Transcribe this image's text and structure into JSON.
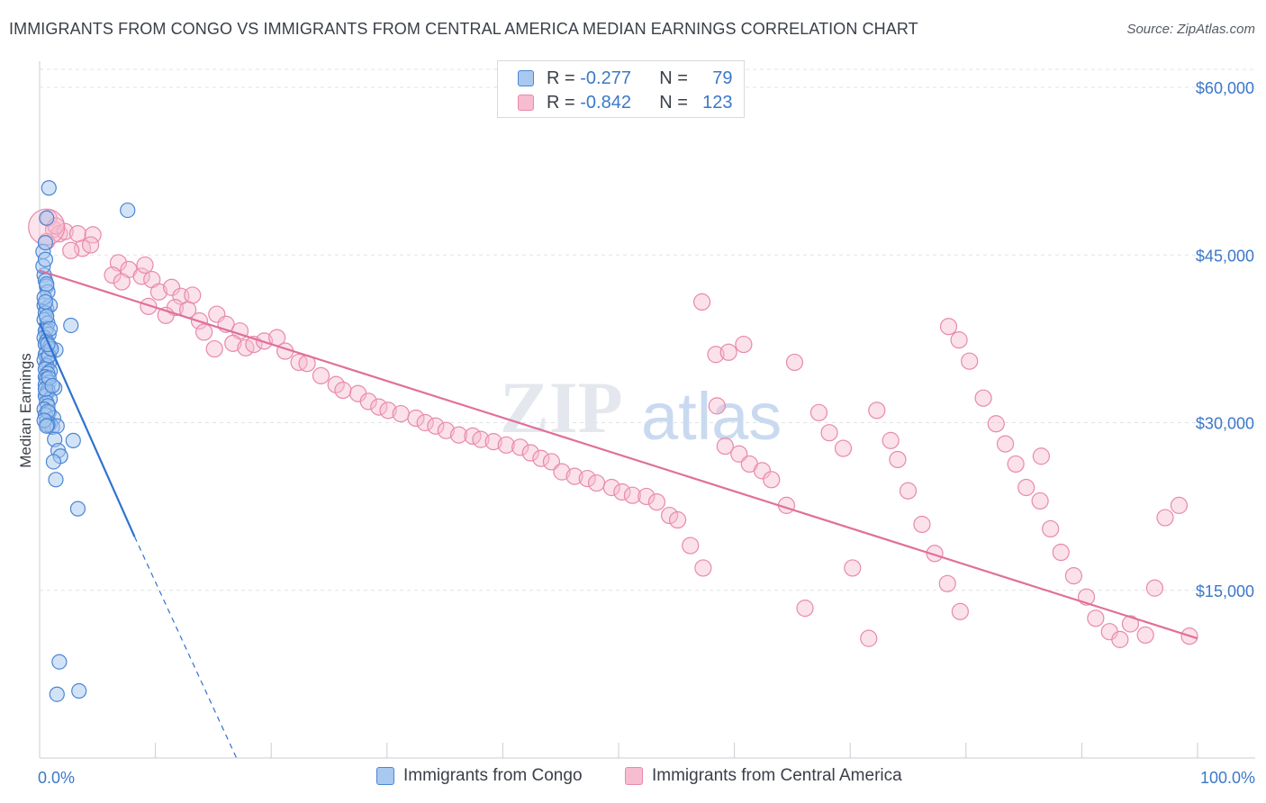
{
  "title": "IMMIGRANTS FROM CONGO VS IMMIGRANTS FROM CENTRAL AMERICA MEDIAN EARNINGS CORRELATION CHART",
  "source": "Source: ZipAtlas.com",
  "watermark": {
    "zip": "ZIP",
    "atlas": "atlas"
  },
  "legend": {
    "rows": [
      {
        "r_label": "R =",
        "r_value": "-0.277",
        "n_label": "N =",
        "n_value": "79"
      },
      {
        "r_label": "R =",
        "r_value": "-0.842",
        "n_label": "N =",
        "n_value": "123"
      }
    ]
  },
  "colors": {
    "congo_fill": "#a8c8f0",
    "congo_stroke": "#4a86d4",
    "congo_line": "#2f72d0",
    "ca_fill": "#f7bcd0",
    "ca_stroke": "#e889ab",
    "ca_line": "#e0709a",
    "tick_text": "#3b78c9",
    "grid": "#dfe3e8"
  },
  "chart_data": {
    "type": "scatter",
    "title": "IMMIGRANTS FROM CONGO VS IMMIGRANTS FROM CENTRAL AMERICA MEDIAN EARNINGS CORRELATION CHART",
    "xlabel": "",
    "ylabel": "Median Earnings",
    "xlim": [
      0,
      100
    ],
    "ylim": [
      0,
      60000
    ],
    "x_tick_labels": [
      "0.0%",
      "100.0%"
    ],
    "y_ticks": [
      15000,
      30000,
      45000,
      60000
    ],
    "y_tick_labels": [
      "$15,000",
      "$30,000",
      "$45,000",
      "$60,000"
    ],
    "grid": true,
    "legend_position": "top-center",
    "series": [
      {
        "name": "Immigrants from Congo",
        "r": -0.277,
        "n": 79,
        "trend": {
          "x0": 0,
          "y0": 38900,
          "x1": 8.2,
          "y1": 19800,
          "dashed_to_x": 17,
          "dashed_to_y": -500
        },
        "points": [
          [
            0.3,
            45300
          ],
          [
            0.5,
            46100
          ],
          [
            0.6,
            48300
          ],
          [
            0.8,
            51000
          ],
          [
            7.6,
            49000
          ],
          [
            0.4,
            43200
          ],
          [
            0.5,
            42700
          ],
          [
            0.6,
            42200
          ],
          [
            0.7,
            41700
          ],
          [
            0.4,
            40500
          ],
          [
            0.6,
            40200
          ],
          [
            0.9,
            40500
          ],
          [
            0.5,
            39800
          ],
          [
            0.4,
            39200
          ],
          [
            0.7,
            38900
          ],
          [
            2.7,
            38700
          ],
          [
            0.6,
            38400
          ],
          [
            0.5,
            38200
          ],
          [
            0.8,
            37900
          ],
          [
            0.4,
            37600
          ],
          [
            0.6,
            37300
          ],
          [
            0.5,
            37000
          ],
          [
            0.9,
            36800
          ],
          [
            1.4,
            36500
          ],
          [
            0.6,
            36300
          ],
          [
            0.5,
            36100
          ],
          [
            0.7,
            35800
          ],
          [
            0.4,
            35600
          ],
          [
            0.8,
            35300
          ],
          [
            0.6,
            35100
          ],
          [
            0.5,
            34800
          ],
          [
            0.9,
            34600
          ],
          [
            0.7,
            34400
          ],
          [
            0.5,
            34100
          ],
          [
            0.6,
            33900
          ],
          [
            0.8,
            33600
          ],
          [
            0.5,
            33400
          ],
          [
            1.3,
            33100
          ],
          [
            0.7,
            32900
          ],
          [
            0.6,
            32600
          ],
          [
            0.5,
            32400
          ],
          [
            0.9,
            32100
          ],
          [
            0.6,
            31800
          ],
          [
            0.7,
            31500
          ],
          [
            0.4,
            31200
          ],
          [
            0.8,
            30900
          ],
          [
            0.5,
            30700
          ],
          [
            1.2,
            30400
          ],
          [
            0.6,
            30100
          ],
          [
            0.9,
            29900
          ],
          [
            1.1,
            29600
          ],
          [
            1.5,
            29700
          ],
          [
            0.7,
            29800
          ],
          [
            1.3,
            28500
          ],
          [
            2.9,
            28400
          ],
          [
            1.6,
            27500
          ],
          [
            1.8,
            27000
          ],
          [
            1.2,
            26500
          ],
          [
            1.4,
            24900
          ],
          [
            3.3,
            22300
          ],
          [
            1.7,
            8600
          ],
          [
            1.5,
            5700
          ],
          [
            3.4,
            6000
          ],
          [
            0.3,
            44000
          ],
          [
            0.5,
            44600
          ],
          [
            0.4,
            41200
          ],
          [
            0.6,
            39500
          ],
          [
            0.8,
            36000
          ],
          [
            0.5,
            33000
          ],
          [
            0.7,
            31000
          ],
          [
            0.4,
            30200
          ],
          [
            0.6,
            29700
          ],
          [
            0.9,
            38400
          ],
          [
            1.0,
            36600
          ],
          [
            0.8,
            34000
          ],
          [
            1.1,
            33300
          ],
          [
            0.6,
            42400
          ],
          [
            0.5,
            40800
          ],
          [
            0.7,
            37000
          ]
        ]
      },
      {
        "name": "Immigrants from Central America",
        "r": -0.842,
        "n": 123,
        "trend": {
          "x0": 0,
          "y0": 43600,
          "x1": 100,
          "y1": 10700
        },
        "points": [
          [
            0.8,
            48300
          ],
          [
            1.2,
            47300
          ],
          [
            1.7,
            46900
          ],
          [
            2.2,
            47100
          ],
          [
            3.3,
            46900
          ],
          [
            4.6,
            46800
          ],
          [
            1.4,
            47600
          ],
          [
            0.6,
            46200
          ],
          [
            3.7,
            45600
          ],
          [
            4.4,
            45900
          ],
          [
            2.7,
            45400
          ],
          [
            6.8,
            44300
          ],
          [
            7.7,
            43700
          ],
          [
            8.8,
            43100
          ],
          [
            9.1,
            44100
          ],
          [
            6.3,
            43200
          ],
          [
            7.1,
            42600
          ],
          [
            9.7,
            42800
          ],
          [
            10.3,
            41700
          ],
          [
            11.4,
            42100
          ],
          [
            12.2,
            41300
          ],
          [
            13.2,
            41400
          ],
          [
            11.7,
            40300
          ],
          [
            10.9,
            39600
          ],
          [
            9.4,
            40400
          ],
          [
            12.8,
            40100
          ],
          [
            13.8,
            39100
          ],
          [
            15.3,
            39700
          ],
          [
            16.1,
            38800
          ],
          [
            17.3,
            38200
          ],
          [
            14.2,
            38100
          ],
          [
            15.1,
            36600
          ],
          [
            16.7,
            37100
          ],
          [
            17.8,
            36700
          ],
          [
            18.5,
            37000
          ],
          [
            19.4,
            37300
          ],
          [
            20.5,
            37600
          ],
          [
            21.2,
            36400
          ],
          [
            22.4,
            35400
          ],
          [
            23.1,
            35300
          ],
          [
            24.3,
            34200
          ],
          [
            25.6,
            33400
          ],
          [
            26.2,
            32900
          ],
          [
            27.5,
            32600
          ],
          [
            28.4,
            31900
          ],
          [
            29.3,
            31400
          ],
          [
            30.1,
            31100
          ],
          [
            31.2,
            30800
          ],
          [
            32.5,
            30400
          ],
          [
            33.3,
            30000
          ],
          [
            34.2,
            29700
          ],
          [
            35.1,
            29300
          ],
          [
            36.2,
            28900
          ],
          [
            37.4,
            28800
          ],
          [
            38.1,
            28500
          ],
          [
            39.2,
            28300
          ],
          [
            40.3,
            28000
          ],
          [
            41.5,
            27800
          ],
          [
            42.4,
            27300
          ],
          [
            43.3,
            26800
          ],
          [
            44.2,
            26500
          ],
          [
            45.1,
            25600
          ],
          [
            46.2,
            25200
          ],
          [
            47.3,
            25000
          ],
          [
            48.1,
            24600
          ],
          [
            49.4,
            24200
          ],
          [
            50.3,
            23800
          ],
          [
            51.2,
            23500
          ],
          [
            52.4,
            23400
          ],
          [
            53.3,
            22900
          ],
          [
            54.4,
            21700
          ],
          [
            55.1,
            21300
          ],
          [
            56.2,
            19000
          ],
          [
            57.3,
            17000
          ],
          [
            58.5,
            31500
          ],
          [
            59.2,
            27900
          ],
          [
            60.4,
            27200
          ],
          [
            61.3,
            26300
          ],
          [
            62.4,
            25700
          ],
          [
            63.2,
            24900
          ],
          [
            64.5,
            22600
          ],
          [
            66.1,
            13400
          ],
          [
            67.3,
            30900
          ],
          [
            68.2,
            29100
          ],
          [
            69.4,
            27700
          ],
          [
            70.2,
            17000
          ],
          [
            71.6,
            10700
          ],
          [
            72.3,
            31100
          ],
          [
            73.5,
            28400
          ],
          [
            74.1,
            26700
          ],
          [
            75.0,
            23900
          ],
          [
            76.2,
            20900
          ],
          [
            77.3,
            18300
          ],
          [
            78.4,
            15600
          ],
          [
            79.5,
            13100
          ],
          [
            57.2,
            40800
          ],
          [
            58.4,
            36100
          ],
          [
            59.5,
            36300
          ],
          [
            65.2,
            35400
          ],
          [
            60.8,
            37000
          ],
          [
            78.5,
            38600
          ],
          [
            79.4,
            37400
          ],
          [
            80.3,
            35500
          ],
          [
            81.5,
            32200
          ],
          [
            82.6,
            29900
          ],
          [
            83.4,
            28100
          ],
          [
            84.3,
            26300
          ],
          [
            85.2,
            24200
          ],
          [
            86.4,
            23000
          ],
          [
            87.3,
            20500
          ],
          [
            88.2,
            18400
          ],
          [
            89.3,
            16300
          ],
          [
            90.4,
            14400
          ],
          [
            91.2,
            12500
          ],
          [
            92.4,
            11300
          ],
          [
            93.3,
            10600
          ],
          [
            94.2,
            12000
          ],
          [
            95.5,
            11000
          ],
          [
            96.3,
            15200
          ],
          [
            97.2,
            21500
          ],
          [
            86.5,
            27000
          ],
          [
            98.4,
            22600
          ],
          [
            99.3,
            10900
          ]
        ]
      }
    ]
  },
  "bottom_legend": {
    "series1": "Immigrants from Congo",
    "series2": "Immigrants from Central America"
  }
}
